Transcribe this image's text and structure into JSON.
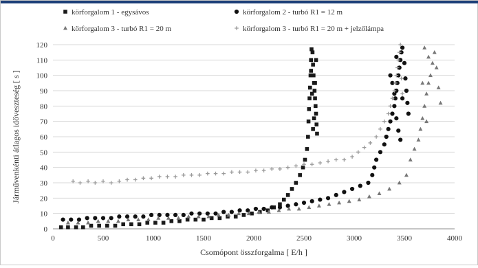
{
  "chart_data": {
    "type": "scatter",
    "xlabel": "Csomópont összforgalma [ E/h ]",
    "ylabel": "Járművenkénti átlagos időveszteség [ s ]",
    "xlim": [
      0,
      4000
    ],
    "ylim": [
      0,
      120
    ],
    "x_ticks": [
      "0",
      "500",
      "1000",
      "1500",
      "2000",
      "2500",
      "3000",
      "3500",
      "4000"
    ],
    "y_ticks": [
      "0",
      "10",
      "20",
      "30",
      "40",
      "50",
      "60",
      "70",
      "80",
      "90",
      "100",
      "110",
      "120"
    ],
    "grid": "horizontal",
    "legend_position": "top",
    "series": [
      {
        "name": "körforgalom 1 - egysávos",
        "marker": "square",
        "color": "#1a1a1a",
        "points": [
          [
            80,
            1
          ],
          [
            150,
            1
          ],
          [
            230,
            1
          ],
          [
            300,
            1
          ],
          [
            380,
            2
          ],
          [
            460,
            2
          ],
          [
            540,
            2
          ],
          [
            620,
            2
          ],
          [
            700,
            3
          ],
          [
            780,
            3
          ],
          [
            860,
            3
          ],
          [
            940,
            4
          ],
          [
            1020,
            4
          ],
          [
            1100,
            4
          ],
          [
            1180,
            5
          ],
          [
            1260,
            5
          ],
          [
            1340,
            6
          ],
          [
            1420,
            6
          ],
          [
            1500,
            6
          ],
          [
            1580,
            7
          ],
          [
            1660,
            7
          ],
          [
            1740,
            8
          ],
          [
            1820,
            8
          ],
          [
            1900,
            9
          ],
          [
            1980,
            10
          ],
          [
            2060,
            11
          ],
          [
            2140,
            12
          ],
          [
            2200,
            14
          ],
          [
            2260,
            16
          ],
          [
            2300,
            19
          ],
          [
            2340,
            22
          ],
          [
            2380,
            26
          ],
          [
            2420,
            30
          ],
          [
            2460,
            35
          ],
          [
            2490,
            40
          ],
          [
            2510,
            45
          ],
          [
            2530,
            52
          ],
          [
            2540,
            60
          ],
          [
            2545,
            70
          ],
          [
            2550,
            78
          ],
          [
            2555,
            85
          ],
          [
            2560,
            92
          ],
          [
            2565,
            100
          ],
          [
            2570,
            110
          ],
          [
            2575,
            117
          ],
          [
            2585,
            115
          ],
          [
            2590,
            107
          ],
          [
            2595,
            100
          ],
          [
            2600,
            95
          ],
          [
            2605,
            90
          ],
          [
            2610,
            85
          ],
          [
            2615,
            80
          ],
          [
            2620,
            75
          ],
          [
            2625,
            68
          ],
          [
            2630,
            62
          ],
          [
            2590,
            65
          ],
          [
            2600,
            72
          ],
          [
            2580,
            88
          ],
          [
            2610,
            95
          ],
          [
            2570,
            103
          ],
          [
            2620,
            110
          ]
        ]
      },
      {
        "name": "körforgalom 2 - turbó R1 = 12 m",
        "marker": "circle",
        "color": "#111111",
        "points": [
          [
            100,
            6
          ],
          [
            180,
            6
          ],
          [
            260,
            6
          ],
          [
            340,
            7
          ],
          [
            420,
            7
          ],
          [
            500,
            7
          ],
          [
            580,
            7
          ],
          [
            660,
            8
          ],
          [
            740,
            8
          ],
          [
            820,
            8
          ],
          [
            900,
            8
          ],
          [
            980,
            9
          ],
          [
            1060,
            9
          ],
          [
            1140,
            9
          ],
          [
            1220,
            9
          ],
          [
            1300,
            9
          ],
          [
            1380,
            10
          ],
          [
            1460,
            10
          ],
          [
            1540,
            10
          ],
          [
            1620,
            10
          ],
          [
            1700,
            11
          ],
          [
            1780,
            11
          ],
          [
            1860,
            12
          ],
          [
            1940,
            12
          ],
          [
            2020,
            13
          ],
          [
            2100,
            13
          ],
          [
            2180,
            14
          ],
          [
            2260,
            14
          ],
          [
            2340,
            15
          ],
          [
            2420,
            16
          ],
          [
            2500,
            17
          ],
          [
            2580,
            18
          ],
          [
            2660,
            19
          ],
          [
            2740,
            20
          ],
          [
            2820,
            22
          ],
          [
            2900,
            24
          ],
          [
            2980,
            26
          ],
          [
            3060,
            28
          ],
          [
            3140,
            30
          ],
          [
            3180,
            35
          ],
          [
            3200,
            40
          ],
          [
            3220,
            45
          ],
          [
            3260,
            50
          ],
          [
            3300,
            55
          ],
          [
            3320,
            60
          ],
          [
            3340,
            65
          ],
          [
            3360,
            70
          ],
          [
            3380,
            75
          ],
          [
            3400,
            80
          ],
          [
            3410,
            85
          ],
          [
            3420,
            90
          ],
          [
            3430,
            95
          ],
          [
            3440,
            100
          ],
          [
            3450,
            105
          ],
          [
            3460,
            110
          ],
          [
            3470,
            115
          ],
          [
            3480,
            118
          ],
          [
            3500,
            108
          ],
          [
            3510,
            98
          ],
          [
            3520,
            90
          ],
          [
            3530,
            82
          ],
          [
            3540,
            75
          ],
          [
            3380,
            95
          ],
          [
            3400,
            88
          ],
          [
            3420,
            72
          ],
          [
            3440,
            64
          ],
          [
            3460,
            58
          ],
          [
            3480,
            85
          ],
          [
            3360,
            100
          ],
          [
            3420,
            112
          ]
        ]
      },
      {
        "name": "körforgalom 3 - turbó R1 = 20 m",
        "marker": "triangle",
        "color": "#777777",
        "points": [
          [
            150,
            4
          ],
          [
            250,
            4
          ],
          [
            350,
            4
          ],
          [
            450,
            5
          ],
          [
            550,
            5
          ],
          [
            650,
            5
          ],
          [
            750,
            6
          ],
          [
            850,
            6
          ],
          [
            950,
            6
          ],
          [
            1050,
            7
          ],
          [
            1150,
            7
          ],
          [
            1250,
            7
          ],
          [
            1350,
            8
          ],
          [
            1450,
            8
          ],
          [
            1550,
            8
          ],
          [
            1650,
            9
          ],
          [
            1750,
            9
          ],
          [
            1850,
            10
          ],
          [
            1950,
            10
          ],
          [
            2050,
            11
          ],
          [
            2150,
            11
          ],
          [
            2250,
            12
          ],
          [
            2350,
            13
          ],
          [
            2450,
            13
          ],
          [
            2550,
            14
          ],
          [
            2650,
            15
          ],
          [
            2750,
            16
          ],
          [
            2850,
            17
          ],
          [
            2950,
            18
          ],
          [
            3050,
            19
          ],
          [
            3150,
            21
          ],
          [
            3250,
            23
          ],
          [
            3350,
            26
          ],
          [
            3450,
            30
          ],
          [
            3520,
            35
          ],
          [
            3560,
            45
          ],
          [
            3600,
            52
          ],
          [
            3640,
            58
          ],
          [
            3660,
            65
          ],
          [
            3680,
            72
          ],
          [
            3700,
            80
          ],
          [
            3720,
            88
          ],
          [
            3740,
            95
          ],
          [
            3760,
            100
          ],
          [
            3780,
            108
          ],
          [
            3800,
            115
          ],
          [
            3820,
            105
          ],
          [
            3840,
            92
          ],
          [
            3860,
            82
          ],
          [
            3700,
            118
          ],
          [
            3740,
            112
          ],
          [
            3680,
            95
          ],
          [
            3720,
            70
          ]
        ]
      },
      {
        "name": "körforgalom 3 - turbó R1 = 20 m + jelzőlámpa",
        "marker": "plus",
        "color": "#9a9a9a",
        "points": [
          [
            200,
            31
          ],
          [
            270,
            30
          ],
          [
            350,
            31
          ],
          [
            420,
            30
          ],
          [
            500,
            31
          ],
          [
            580,
            30
          ],
          [
            660,
            31
          ],
          [
            740,
            32
          ],
          [
            820,
            32
          ],
          [
            900,
            33
          ],
          [
            980,
            33
          ],
          [
            1060,
            34
          ],
          [
            1140,
            34
          ],
          [
            1220,
            34
          ],
          [
            1300,
            35
          ],
          [
            1380,
            35
          ],
          [
            1460,
            35
          ],
          [
            1540,
            36
          ],
          [
            1620,
            36
          ],
          [
            1700,
            36
          ],
          [
            1780,
            37
          ],
          [
            1860,
            37
          ],
          [
            1940,
            37
          ],
          [
            2020,
            38
          ],
          [
            2100,
            38
          ],
          [
            2180,
            39
          ],
          [
            2260,
            39
          ],
          [
            2340,
            40
          ],
          [
            2420,
            41
          ],
          [
            2500,
            42
          ],
          [
            2580,
            42
          ],
          [
            2660,
            43
          ],
          [
            2740,
            44
          ],
          [
            2820,
            45
          ],
          [
            2900,
            45
          ],
          [
            2980,
            47
          ],
          [
            3040,
            50
          ],
          [
            3100,
            53
          ],
          [
            3160,
            56
          ],
          [
            3220,
            60
          ],
          [
            3260,
            65
          ],
          [
            3300,
            70
          ],
          [
            3340,
            75
          ],
          [
            3360,
            80
          ],
          [
            3380,
            85
          ],
          [
            3400,
            90
          ],
          [
            3410,
            95
          ],
          [
            3420,
            100
          ],
          [
            3430,
            105
          ],
          [
            3440,
            110
          ],
          [
            3450,
            115
          ],
          [
            3460,
            120
          ],
          [
            3470,
            98
          ],
          [
            3480,
            88
          ]
        ]
      }
    ]
  }
}
